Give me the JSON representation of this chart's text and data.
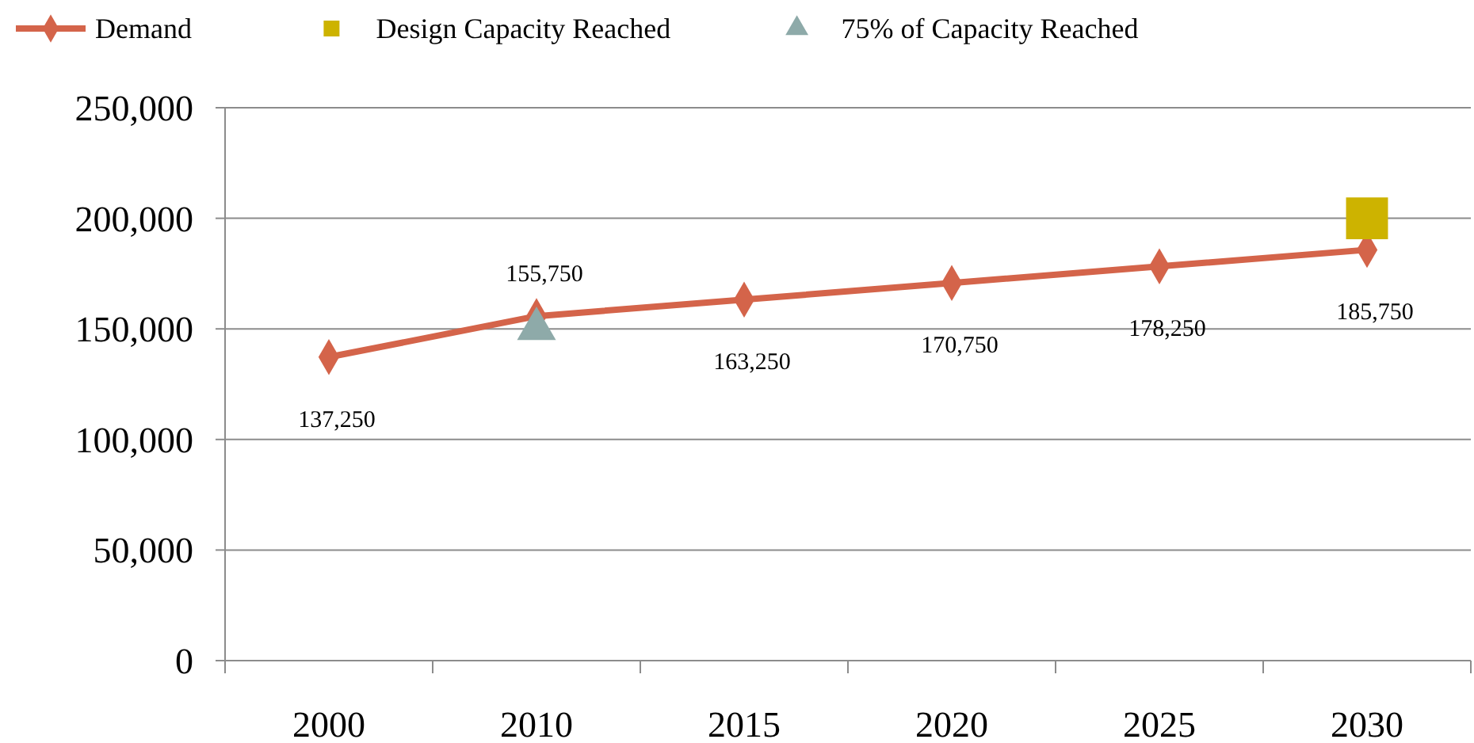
{
  "chart_data": {
    "type": "line",
    "categories": [
      "2000",
      "2010",
      "2015",
      "2020",
      "2025",
      "2030"
    ],
    "series": [
      {
        "name": "Demand",
        "color": "#d4644a",
        "marker": "diamond",
        "values": [
          137250,
          155750,
          163250,
          170750,
          178250,
          185750
        ],
        "value_labels": [
          "137,250",
          "155,750",
          "163,250",
          "170,750",
          "178,250",
          "185,750"
        ]
      },
      {
        "name": "Design Capacity Reached",
        "type": "scatter",
        "color": "#cdb300",
        "marker": "square",
        "values": [
          null,
          null,
          null,
          null,
          null,
          200000
        ]
      },
      {
        "name": "75% of Capacity Reached",
        "type": "scatter",
        "color": "#8eaaa9",
        "marker": "triangle",
        "values": [
          null,
          150000,
          null,
          null,
          null,
          null
        ]
      }
    ],
    "ylim": [
      0,
      250000
    ],
    "yticks": [
      {
        "value": 0,
        "label": "0"
      },
      {
        "value": 50000,
        "label": "50,000"
      },
      {
        "value": 100000,
        "label": "100,000"
      },
      {
        "value": 150000,
        "label": "150,000"
      },
      {
        "value": 200000,
        "label": "200,000"
      },
      {
        "value": 250000,
        "label": "250,000"
      }
    ],
    "grid": "y",
    "legend": "top"
  }
}
